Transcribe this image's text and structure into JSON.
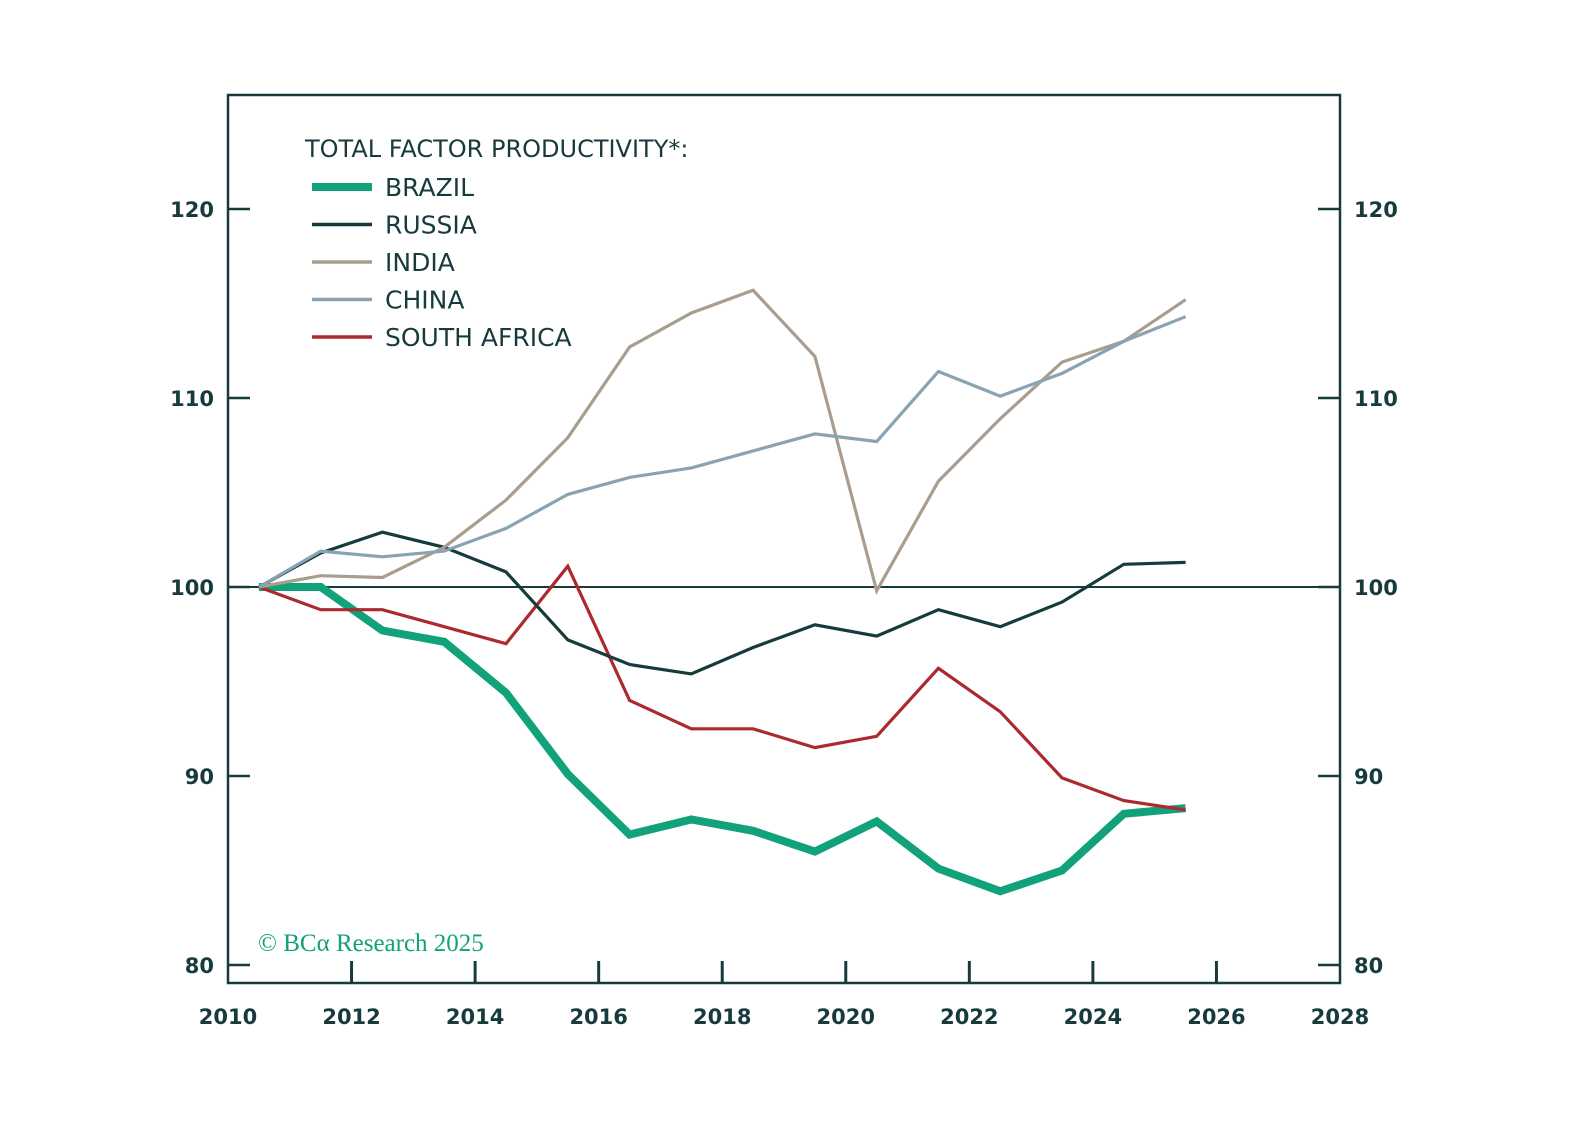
{
  "chart_data": {
    "type": "line",
    "title": "TOTAL FACTOR PRODUCTIVITY*:",
    "xlabel": "",
    "ylabel": "",
    "xlim": [
      2010,
      2028
    ],
    "ylim": [
      80,
      126
    ],
    "x_ticks": [
      2010,
      2012,
      2014,
      2016,
      2018,
      2020,
      2022,
      2024,
      2026,
      2028
    ],
    "y_ticks": [
      80,
      90,
      100,
      110,
      120
    ],
    "x_tick_labels": [
      "2010",
      "2012",
      "2014",
      "2016",
      "2018",
      "2020",
      "2022",
      "2024",
      "2026",
      "2028"
    ],
    "y_tick_labels": [
      "80",
      "90",
      "100",
      "110",
      "120"
    ],
    "y_axis_right": true,
    "reference_line": 100,
    "grid": false,
    "legend_position": "top-left",
    "x": [
      2010.5,
      2011.5,
      2012.5,
      2013.5,
      2014.5,
      2015.5,
      2016.5,
      2017.5,
      2018.5,
      2019.5,
      2020.5,
      2021.5,
      2022.5,
      2023.5,
      2024.5,
      2025.5
    ],
    "series": [
      {
        "name": "BRAZIL",
        "color": "#12a27b",
        "weight": "thick",
        "values": [
          100,
          100,
          97.7,
          97.1,
          94.4,
          90.1,
          86.9,
          87.7,
          87.1,
          86.0,
          87.6,
          85.1,
          83.9,
          85.0,
          88.0,
          88.3
        ]
      },
      {
        "name": "RUSSIA",
        "color": "#173b3c",
        "weight": "normal",
        "values": [
          100,
          101.8,
          102.9,
          102.1,
          100.8,
          97.2,
          95.9,
          95.4,
          96.8,
          98.0,
          97.4,
          98.8,
          97.9,
          99.2,
          101.2,
          101.3
        ]
      },
      {
        "name": "INDIA",
        "color": "#a99d8e",
        "weight": "normal",
        "values": [
          100,
          100.6,
          100.5,
          102.1,
          104.6,
          107.9,
          112.7,
          114.5,
          115.7,
          112.2,
          99.8,
          105.6,
          108.9,
          111.9,
          113.0,
          115.2
        ]
      },
      {
        "name": "CHINA",
        "color": "#8aa3b3",
        "weight": "normal",
        "values": [
          100,
          101.9,
          101.6,
          101.9,
          103.1,
          104.9,
          105.8,
          106.3,
          107.2,
          108.1,
          107.7,
          111.4,
          110.1,
          111.3,
          113.0,
          114.3
        ]
      },
      {
        "name": "SOUTH AFRICA",
        "color": "#ac2a2f",
        "weight": "normal",
        "values": [
          100,
          98.8,
          98.8,
          97.9,
          97.0,
          101.1,
          94.0,
          92.5,
          92.5,
          91.5,
          92.1,
          95.7,
          93.4,
          89.9,
          88.7,
          88.2
        ]
      }
    ],
    "annotation": "© BCα Research 2025"
  },
  "colors": {
    "axis": "#173b3c",
    "text": "#173b3c",
    "brand": "#12a27b"
  }
}
